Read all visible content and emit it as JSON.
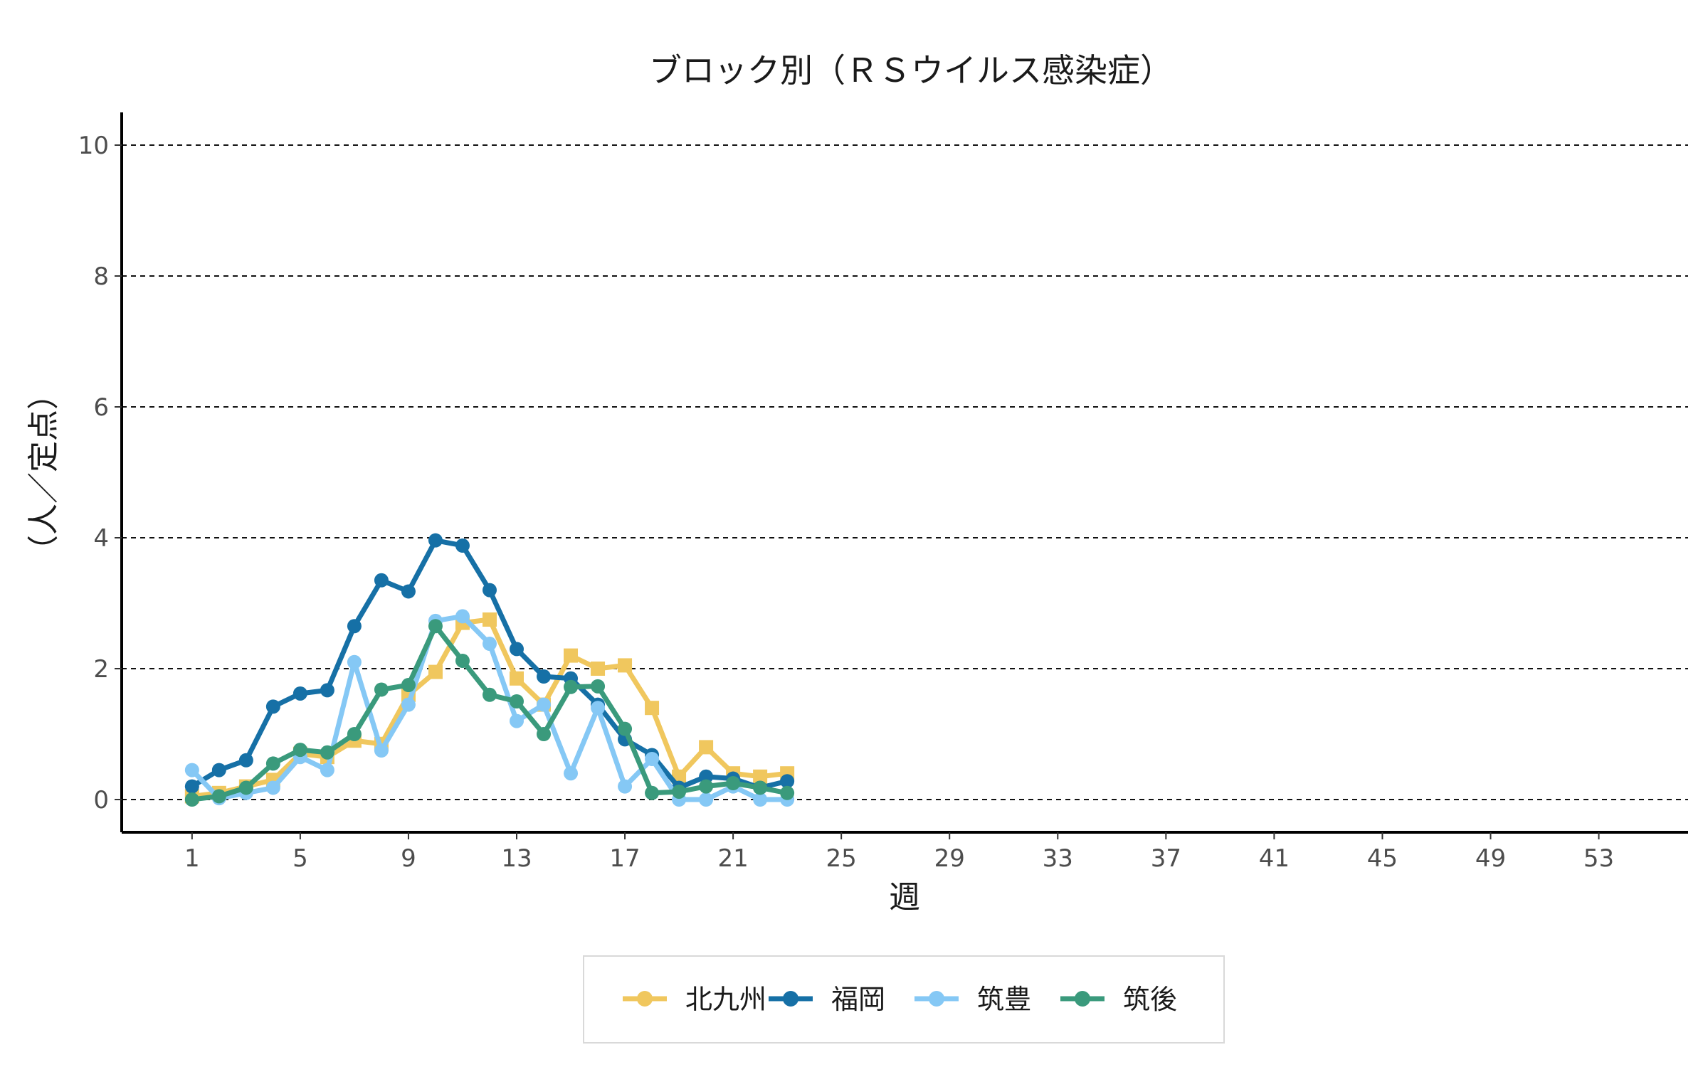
{
  "chart_data": {
    "type": "line",
    "title": "ブロック別（ＲＳウイルス感染症）",
    "xlabel": "週",
    "ylabel": "（人／定点）",
    "xlim": [
      -1.6,
      56.3
    ],
    "ylim": [
      -0.5,
      10.5
    ],
    "x_ticks": [
      1,
      5,
      9,
      13,
      17,
      21,
      25,
      29,
      33,
      37,
      41,
      45,
      49,
      53
    ],
    "y_ticks": [
      0,
      2,
      4,
      6,
      8,
      10
    ],
    "grid": "horizontal dashed",
    "legend_position": "bottom",
    "x": [
      1,
      2,
      3,
      4,
      5,
      6,
      7,
      8,
      9,
      10,
      11,
      12,
      13,
      14,
      15,
      16,
      17,
      18,
      19,
      20,
      21,
      22,
      23
    ],
    "series": [
      {
        "name": "北九州",
        "color": "#F0C75E",
        "marker": "square",
        "values": [
          0.05,
          0.1,
          0.2,
          0.3,
          0.7,
          0.65,
          0.9,
          0.85,
          1.6,
          1.95,
          2.7,
          2.75,
          1.85,
          1.45,
          2.2,
          2.0,
          2.05,
          1.4,
          0.35,
          0.8,
          0.4,
          0.35,
          0.4
        ]
      },
      {
        "name": "福岡",
        "color": "#1670A6",
        "marker": "circle",
        "values": [
          0.2,
          0.45,
          0.6,
          1.42,
          1.62,
          1.67,
          2.65,
          3.35,
          3.18,
          3.96,
          3.88,
          3.2,
          2.3,
          1.88,
          1.85,
          1.45,
          0.92,
          0.68,
          0.18,
          0.35,
          0.32,
          0.18,
          0.28
        ]
      },
      {
        "name": "筑豊",
        "color": "#85C8F5",
        "marker": "circle",
        "values": [
          0.45,
          0.02,
          0.1,
          0.18,
          0.65,
          0.45,
          2.1,
          0.75,
          1.45,
          2.73,
          2.8,
          2.38,
          1.2,
          1.45,
          0.4,
          1.4,
          0.2,
          0.62,
          0.0,
          0.0,
          0.2,
          0.0,
          0.0
        ]
      },
      {
        "name": "筑後",
        "color": "#3A9A7C",
        "marker": "circle",
        "values": [
          0.0,
          0.05,
          0.18,
          0.55,
          0.76,
          0.72,
          1.0,
          1.68,
          1.75,
          2.65,
          2.12,
          1.6,
          1.5,
          1.0,
          1.72,
          1.73,
          1.08,
          0.1,
          0.12,
          0.2,
          0.25,
          0.18,
          0.1
        ]
      }
    ]
  }
}
